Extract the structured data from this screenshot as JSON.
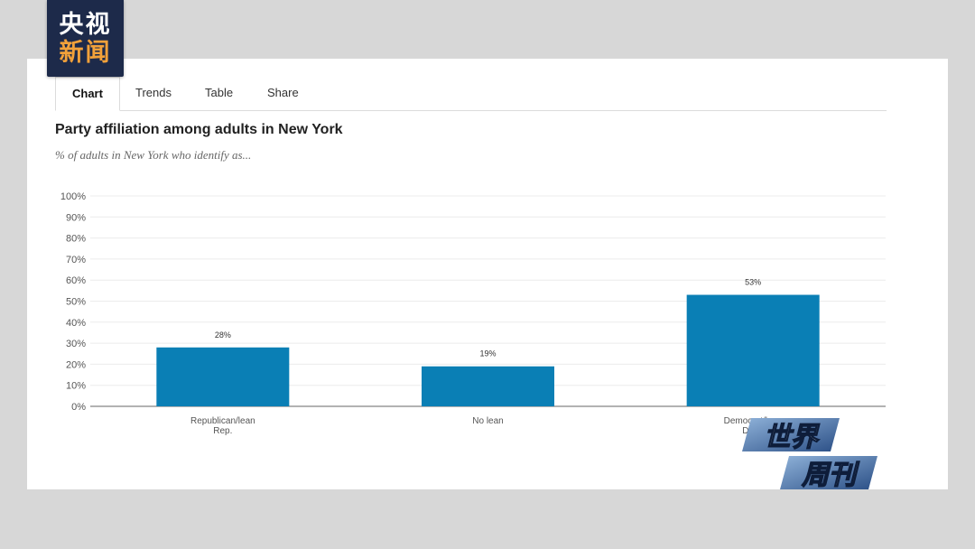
{
  "logo": {
    "line1": "央视",
    "line2": "新闻"
  },
  "tabs": [
    {
      "label": "Chart",
      "active": true
    },
    {
      "label": "Trends",
      "active": false
    },
    {
      "label": "Table",
      "active": false
    },
    {
      "label": "Share",
      "active": false
    }
  ],
  "chart_data": {
    "type": "bar",
    "title": "Party affiliation among adults in New York",
    "subtitle": "% of adults in New York who identify as...",
    "categories": [
      "Republican/lean Rep.",
      "No lean",
      "Democrat/lean Dem."
    ],
    "category_lines": [
      [
        "Republican/lean",
        "Rep."
      ],
      [
        "No lean"
      ],
      [
        "Democrat/lean",
        "Dem."
      ]
    ],
    "values": [
      28,
      19,
      53
    ],
    "value_labels": [
      "28%",
      "19%",
      "53%"
    ],
    "ylim": [
      0,
      100
    ],
    "yticks": [
      "0%",
      "10%",
      "20%",
      "30%",
      "40%",
      "50%",
      "60%",
      "70%",
      "80%",
      "90%",
      "100%"
    ],
    "grid": true,
    "bar_color": "#0a7fb5"
  },
  "badge": {
    "line1": "世界",
    "line2": "周刊"
  }
}
